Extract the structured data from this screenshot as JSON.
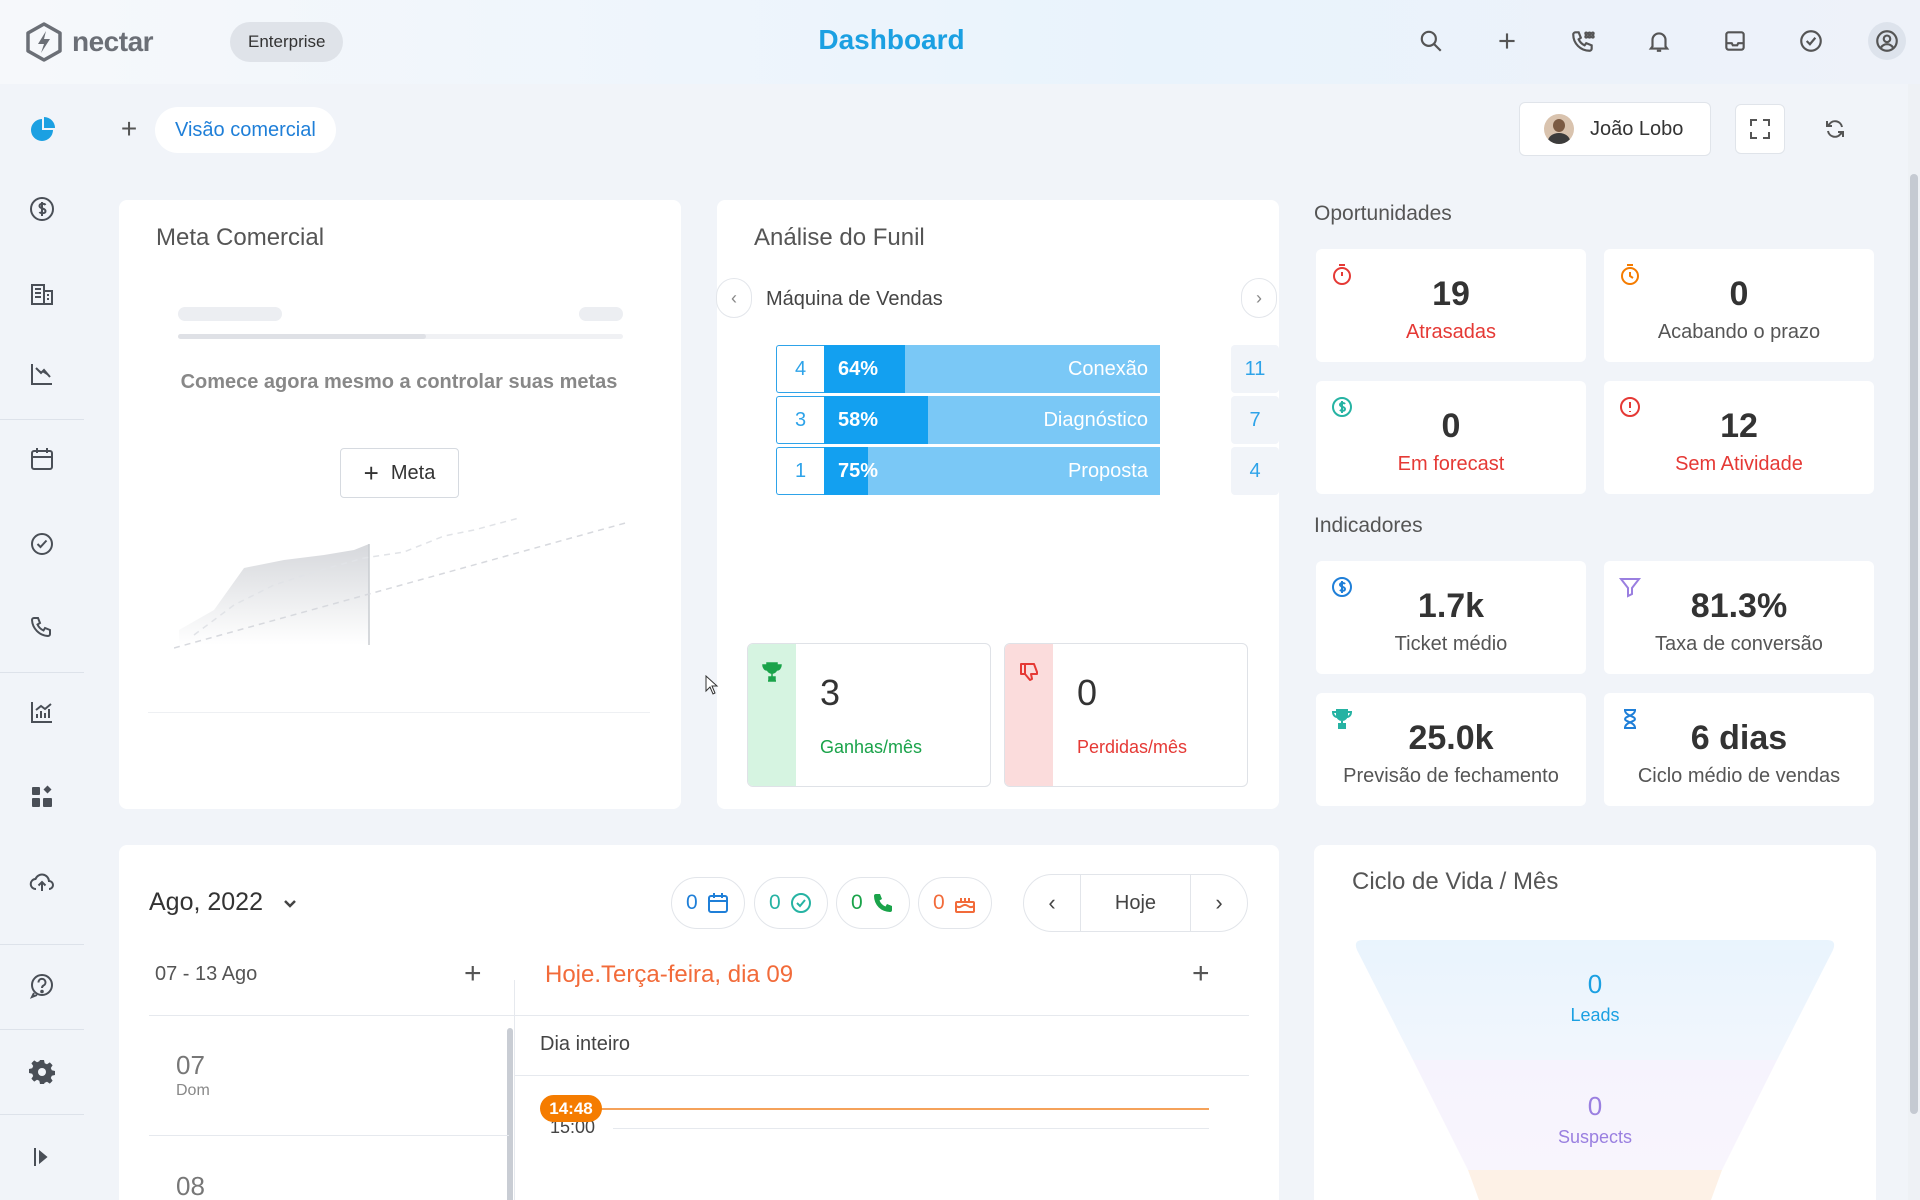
{
  "brand": {
    "name": "nectar",
    "plan": "Enterprise"
  },
  "header": {
    "title": "Dashboard",
    "icons": [
      "search-icon",
      "plus-icon",
      "phone-icon",
      "bell-icon",
      "inbox-icon",
      "check-circle-icon",
      "user-circle-icon"
    ]
  },
  "sidebar": {
    "items": [
      "dashboard-icon",
      "dollar-icon",
      "building-icon",
      "chart-down-icon",
      "calendar-icon",
      "check-circle-icon",
      "phone-icon",
      "analytics-icon",
      "widgets-icon",
      "cloud-upload-icon",
      "help-icon",
      "gear-icon",
      "expand-sidebar-icon"
    ]
  },
  "tabs": {
    "active": "Visão comercial"
  },
  "filter": {
    "user": "João Lobo"
  },
  "meta": {
    "title": "Meta Comercial",
    "empty_text": "Comece agora mesmo a controlar suas metas",
    "button": "Meta"
  },
  "funil": {
    "title": "Análise do Funil",
    "pipeline": "Máquina de Vendas",
    "stages": [
      {
        "count": "4",
        "percent": "64%",
        "percent_value": 0.24,
        "name": "Conexão",
        "total": "11"
      },
      {
        "count": "3",
        "percent": "58%",
        "percent_value": 0.31,
        "name": "Diagnóstico",
        "total": "7"
      },
      {
        "count": "1",
        "percent": "75%",
        "percent_value": 0.13,
        "name": "Proposta",
        "total": "4"
      }
    ],
    "won": {
      "value": "3",
      "label": "Ganhas/mês"
    },
    "lost": {
      "value": "0",
      "label": "Perdidas/mês"
    }
  },
  "oportunidades": {
    "title": "Oportunidades",
    "items": [
      {
        "value": "19",
        "label": "Atrasadas",
        "color": "#e53935"
      },
      {
        "value": "0",
        "label": "Acabando o prazo",
        "color": "#555555"
      },
      {
        "value": "0",
        "label": "Em forecast",
        "color": "#e53935"
      },
      {
        "value": "12",
        "label": "Sem Atividade",
        "color": "#e53935"
      }
    ]
  },
  "indicadores": {
    "title": "Indicadores",
    "items": [
      {
        "value": "1.7k",
        "label": "Ticket médio"
      },
      {
        "value": "81.3%",
        "label": "Taxa de conversão"
      },
      {
        "value": "25.0k",
        "label": "Previsão de fechamento"
      },
      {
        "value": "6 dias",
        "label": "Ciclo médio de vendas"
      }
    ]
  },
  "calendar": {
    "month": "Ago, 2022",
    "counters": [
      {
        "value": "0",
        "icon": "calendar-icon",
        "color": "#1f7fd8"
      },
      {
        "value": "0",
        "icon": "check-circle-icon",
        "color": "#26b3a3"
      },
      {
        "value": "0",
        "icon": "phone-icon",
        "color": "#1aa34a"
      },
      {
        "value": "0",
        "icon": "cake-icon",
        "color": "#f26b3a"
      }
    ],
    "today_label": "Hoje",
    "week_range": "07 - 13 Ago",
    "day_title": "Hoje.Terça-feira, dia 09",
    "all_day": "Dia inteiro",
    "now": "14:48",
    "hour": "15:00",
    "days": [
      {
        "num": "07",
        "dow": "Dom"
      },
      {
        "num": "08",
        "dow": ""
      }
    ]
  },
  "ciclo": {
    "title": "Ciclo de Vida / Mês",
    "stages": [
      {
        "value": "0",
        "label": "Leads",
        "color": "#1ba0e2"
      },
      {
        "value": "0",
        "label": "Suspects",
        "color": "#9a7fe0"
      }
    ]
  }
}
